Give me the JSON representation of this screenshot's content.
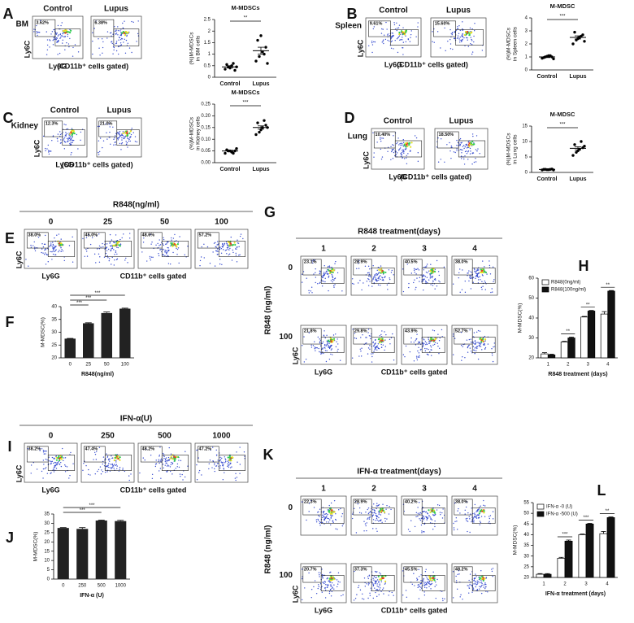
{
  "flow_panels": [
    {
      "letter": "A",
      "row_label": "BM",
      "y_axis": "Ly6C",
      "x_axis": "Ly6G",
      "gate_note": "(CD11b⁺ cells gated)",
      "columns": [
        "Control",
        "Lupus"
      ],
      "gates": [
        [
          "3.62%",
          "6.38%"
        ]
      ]
    },
    {
      "letter": "B",
      "row_label": "Spleen",
      "y_axis": "Ly6C",
      "x_axis": "Ly6G",
      "gate_note": "(CD11b⁺ cells gated)",
      "columns": [
        "Control",
        "Lupus"
      ],
      "gates": [
        [
          "9.61%",
          "15.60%"
        ]
      ]
    },
    {
      "letter": "C",
      "row_label": "Kidney",
      "y_axis": "Ly6C",
      "x_axis": "Ly6G",
      "gate_note": "(CD11b⁺ cells gated)",
      "columns": [
        "Control",
        "Lupus"
      ],
      "gates": [
        [
          "12.3%",
          "21.0%"
        ]
      ]
    },
    {
      "letter": "D",
      "row_label": "Lung",
      "y_axis": "Ly6C",
      "x_axis": "Ly6G",
      "gate_note": "(CD11b⁺ cells gated)",
      "columns": [
        "Control",
        "Lupus"
      ],
      "gates": [
        [
          "10.40%",
          "18.50%"
        ]
      ]
    },
    {
      "letter": "E",
      "title": "R848(ng/ml)",
      "y_axis": "Ly6C",
      "x_axis": "Ly6G",
      "gate_note": "CD11b⁺ cells gated",
      "columns": [
        "0",
        "25",
        "50",
        "100"
      ],
      "gates": [
        [
          "38.0%",
          "45.0%",
          "48.6%",
          "57.2%"
        ]
      ]
    },
    {
      "letter": "G",
      "title": "R848 treatment(days)",
      "row_axis": "R848 (ng/ml)",
      "rows": [
        "0",
        "100"
      ],
      "y_axis": "Ly6C",
      "x_axis": "Ly6G",
      "gate_note": "CD11b⁺ cells gated",
      "columns": [
        "1",
        "2",
        "3",
        "4"
      ],
      "gates": [
        [
          "23.1%",
          "28.9%",
          "40.5%",
          "38.0%"
        ],
        [
          "21.8%",
          "29.8%",
          "43.9%",
          "52.7%"
        ]
      ]
    },
    {
      "letter": "I",
      "title": "IFN-α(U)",
      "y_axis": "Ly6C",
      "x_axis": "Ly6G",
      "gate_note": "CD11b⁺ cells gated",
      "columns": [
        "0",
        "250",
        "500",
        "1000"
      ],
      "gates": [
        [
          "38.2%",
          "47.4%",
          "48.2%",
          "47.2%"
        ]
      ]
    },
    {
      "letter": "K",
      "title": "IFN-α treatment(days)",
      "row_axis": "R848 (ng/ml)",
      "rows": [
        "0",
        "100"
      ],
      "y_axis": "Ly6C",
      "x_axis": "Ly6G",
      "gate_note": "CD11b⁺ cells gated",
      "columns": [
        "1",
        "2",
        "3",
        "4"
      ],
      "gates": [
        [
          "22.3%",
          "28.9%",
          "40.2%",
          "38.0%"
        ],
        [
          "20.7%",
          "37.3%",
          "45.5%",
          "48.2%"
        ]
      ]
    }
  ],
  "chart_data": [
    {
      "type": "strip",
      "title": "M-MDSCs",
      "y_label": [
        "(%)M-MDSCs",
        "in BM cells"
      ],
      "categories": [
        "Control",
        "Lupus"
      ],
      "color": "#000000",
      "points": [
        [
          0.35,
          0.45,
          0.5,
          0.3,
          0.55,
          0.4,
          0.6,
          0.45
        ],
        [
          0.7,
          0.9,
          1.1,
          1.3,
          1.6,
          1.8,
          1.0,
          0.6
        ]
      ],
      "means": [
        0.45,
        1.15
      ],
      "errors": [
        0.05,
        0.15
      ],
      "significance": "**",
      "ylim": [
        0,
        2.5
      ],
      "yticks": [
        0,
        0.5,
        1,
        1.5,
        2,
        2.5
      ]
    },
    {
      "type": "strip",
      "title": "M-MDSC",
      "y_label": [
        "(%)M-MDSCs",
        "in Spleen cells"
      ],
      "categories": [
        "Control",
        "Lupus"
      ],
      "color": "#000000",
      "points": [
        [
          0.9,
          1.0,
          1.1,
          1.0,
          0.95,
          1.05,
          1.1,
          0.85
        ],
        [
          2.0,
          2.3,
          2.5,
          2.7,
          2.9,
          2.4,
          2.6,
          2.2
        ]
      ],
      "means": [
        1.0,
        2.5
      ],
      "errors": [
        0.05,
        0.12
      ],
      "significance": "***",
      "ylim": [
        0,
        4
      ],
      "yticks": [
        0,
        1,
        2,
        3,
        4
      ]
    },
    {
      "type": "strip",
      "title": "M-MDSCs",
      "y_label": [
        "(%)M-MDSCs",
        "in Kidney cells"
      ],
      "categories": [
        "Control",
        "Lupus"
      ],
      "color": "#000000",
      "points": [
        [
          0.04,
          0.05,
          0.045,
          0.05,
          0.055,
          0.05,
          0.04,
          0.06
        ],
        [
          0.12,
          0.13,
          0.15,
          0.16,
          0.17,
          0.14,
          0.18,
          0.15
        ]
      ],
      "means": [
        0.05,
        0.15
      ],
      "errors": [
        0.003,
        0.007
      ],
      "significance": "***",
      "ylim": [
        0,
        0.25
      ],
      "yticks": [
        {
          "value": 0,
          "label": "0.00"
        },
        {
          "value": 0.05,
          "label": "0.05"
        },
        {
          "value": 0.1,
          "label": "0.10"
        },
        {
          "value": 0.15,
          "label": "0.15"
        },
        {
          "value": 0.2,
          "label": "0.20"
        },
        {
          "value": 0.25,
          "label": "0.25"
        }
      ]
    },
    {
      "type": "strip",
      "title": "M-MDSC",
      "y_label": [
        "(%)M-MDSCs",
        "in Lung cells"
      ],
      "categories": [
        "Control",
        "Lupus"
      ],
      "color": "#000000",
      "points": [
        [
          0.8,
          1.0,
          0.9,
          1.1,
          1.0,
          0.9,
          1.0,
          0.8
        ],
        [
          5.5,
          6.5,
          7.5,
          8,
          9,
          7,
          10,
          8.5
        ]
      ],
      "means": [
        0.95,
        7.8
      ],
      "errors": [
        0.05,
        0.5
      ],
      "significance": "***",
      "ylim": [
        0,
        15
      ],
      "yticks": [
        0,
        5,
        10,
        15
      ]
    },
    {
      "type": "bar",
      "panel_label": "F",
      "x_label": "R848(ng/ml)",
      "y_label": "M-MDSC(%)",
      "categories": [
        "0",
        "25",
        "50",
        "100"
      ],
      "color": "#222222",
      "values": [
        27.5,
        33.5,
        37.5,
        39.2
      ],
      "errors": [
        0.1,
        0.2,
        0.4,
        0.2
      ],
      "comparisons": [
        {
          "pair": [
            "0",
            "25"
          ],
          "label": "***"
        },
        {
          "pair": [
            "0",
            "50"
          ],
          "label": "***"
        },
        {
          "pair": [
            "0",
            "100"
          ],
          "label": "***"
        }
      ],
      "ylim": [
        20,
        40
      ],
      "yticks": [
        20,
        25,
        30,
        35,
        40
      ]
    },
    {
      "type": "grouped",
      "panel_label": "H",
      "x_label": "R848 treatment (days)",
      "y_label": "M-MDSC(%)",
      "categories": [
        "1",
        "2",
        "3",
        "4"
      ],
      "series": [
        {
          "name": "R848(0ng/ml)",
          "color": "#ffffff",
          "values": [
            22,
            28,
            40.5,
            42
          ],
          "errors": [
            0.6,
            0.3,
            0.3,
            1.2
          ]
        },
        {
          "name": "R848(100ng/ml)",
          "color": "#111111",
          "values": [
            21.5,
            30,
            43.5,
            53.5
          ],
          "errors": [
            0.3,
            0.4,
            0.3,
            0.3
          ]
        }
      ],
      "significance": [
        null,
        "**",
        "**",
        "**"
      ],
      "ylim": [
        20,
        60
      ],
      "yticks": [
        20,
        30,
        40,
        50,
        60
      ]
    },
    {
      "type": "bar",
      "panel_label": "J",
      "x_label": "IFN-α (U)",
      "y_label": "M-MDSC(%)",
      "categories": [
        "0",
        "250",
        "500",
        "1000"
      ],
      "color": "#222222",
      "values": [
        27.5,
        27,
        31.5,
        31.2
      ],
      "errors": [
        0.2,
        0.7,
        0.2,
        0.4
      ],
      "comparisons": [
        {
          "pair": [
            "0",
            "500"
          ],
          "label": "***"
        },
        {
          "pair": [
            "0",
            "1000"
          ],
          "label": "***"
        }
      ],
      "ylim": [
        0,
        35
      ],
      "yticks": [
        0,
        5,
        10,
        15,
        20,
        25,
        30,
        35
      ]
    },
    {
      "type": "grouped",
      "panel_label": "L",
      "x_label": "IFN-α  treatment (days)",
      "y_label": "M-MDSC(%)",
      "categories": [
        "1",
        "2",
        "3",
        "4"
      ],
      "series": [
        {
          "name": "IFN-α -0 (U)",
          "color": "#ffffff",
          "values": [
            21.5,
            29,
            40,
            40.5
          ],
          "errors": [
            0.3,
            0.4,
            0.3,
            1.0
          ]
        },
        {
          "name": "IFN-α -500 (U)",
          "color": "#111111",
          "values": [
            21.5,
            37,
            45,
            48
          ],
          "errors": [
            0.3,
            0.5,
            0.3,
            0.3
          ]
        }
      ],
      "significance": [
        null,
        "***",
        "***",
        "**"
      ],
      "ylim": [
        20,
        55
      ],
      "yticks": [
        20,
        25,
        30,
        35,
        40,
        45,
        50,
        55
      ]
    }
  ]
}
